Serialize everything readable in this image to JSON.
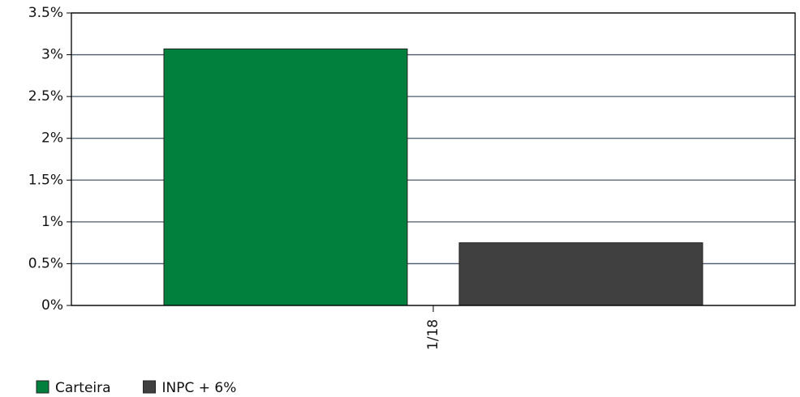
{
  "chart_data": {
    "type": "bar",
    "categories": [
      "1/18"
    ],
    "series": [
      {
        "name": "Carteira",
        "color": "#007f3d",
        "values": [
          3.07
        ]
      },
      {
        "name": "INPC + 6%",
        "color": "#404040",
        "values": [
          0.75
        ]
      }
    ],
    "ylim": [
      0,
      3.5
    ],
    "yticks": [
      {
        "value": 0,
        "label": "0%"
      },
      {
        "value": 0.5,
        "label": "0.5%"
      },
      {
        "value": 1,
        "label": "1%"
      },
      {
        "value": 1.5,
        "label": "1.5%"
      },
      {
        "value": 2,
        "label": "2%"
      },
      {
        "value": 2.5,
        "label": "2.5%"
      },
      {
        "value": 3,
        "label": "3%"
      },
      {
        "value": 3.5,
        "label": "3.5%"
      }
    ],
    "grid": true
  }
}
